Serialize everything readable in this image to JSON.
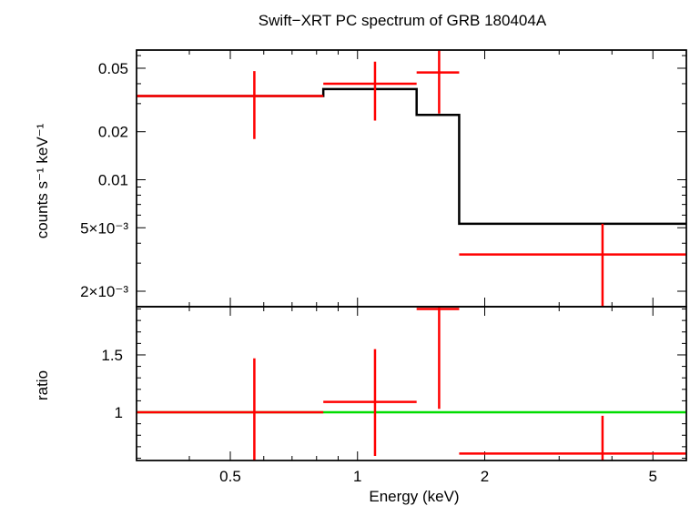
{
  "chart_data": [
    {
      "type": "scatter",
      "title": "Swift−XRT PC spectrum of GRB 180404A",
      "ylabel": "counts s⁻¹ keV⁻¹",
      "xscale": "log",
      "yscale": "log",
      "xlim": [
        0.3,
        6.0
      ],
      "ylim": [
        0.0016,
        0.065
      ],
      "yticks": [
        {
          "value": 0.05,
          "label": "0.05"
        },
        {
          "value": 0.02,
          "label": "0.02"
        },
        {
          "value": 0.01,
          "label": "0.01"
        },
        {
          "value": 0.005,
          "label": "5×10⁻³"
        },
        {
          "value": 0.002,
          "label": "2×10⁻³"
        }
      ],
      "data": {
        "points": [
          {
            "x": 0.57,
            "xlo": 0.3,
            "xhi": 0.83,
            "y": 0.0335,
            "ylo": 0.018,
            "yhi": 0.048
          },
          {
            "x": 1.1,
            "xlo": 0.83,
            "xhi": 1.38,
            "y": 0.04,
            "ylo": 0.0235,
            "yhi": 0.055
          },
          {
            "x": 1.56,
            "xlo": 1.38,
            "xhi": 1.74,
            "y": 0.047,
            "ylo": 0.026,
            "yhi": 0.066
          },
          {
            "x": 3.8,
            "xlo": 1.74,
            "xhi": 6.0,
            "y": 0.0034,
            "ylo": 0.0016,
            "yhi": 0.0053
          }
        ],
        "color": "#ff0000"
      },
      "model": {
        "steps": [
          {
            "xlo": 0.3,
            "xhi": 0.83,
            "y": 0.0335
          },
          {
            "xlo": 0.83,
            "xhi": 1.38,
            "y": 0.037
          },
          {
            "xlo": 1.38,
            "xhi": 1.74,
            "y": 0.0255
          },
          {
            "xlo": 1.74,
            "xhi": 6.0,
            "y": 0.0053
          }
        ],
        "color": "#000000"
      },
      "grid": false
    },
    {
      "type": "scatter",
      "xlabel": "Energy (keV)",
      "ylabel": "ratio",
      "xscale": "log",
      "yscale": "linear",
      "xlim": [
        0.3,
        6.0
      ],
      "ylim": [
        0.58,
        1.92
      ],
      "xticks": [
        {
          "value": 0.5,
          "label": "0.5"
        },
        {
          "value": 1,
          "label": "1"
        },
        {
          "value": 2,
          "label": "2"
        },
        {
          "value": 5,
          "label": "5"
        }
      ],
      "yticks": [
        {
          "value": 1,
          "label": "1"
        },
        {
          "value": 1.5,
          "label": "1.5"
        }
      ],
      "data": {
        "points": [
          {
            "x": 0.57,
            "xlo": 0.3,
            "xhi": 0.83,
            "y": 1.0,
            "ylo": 0.54,
            "yhi": 1.47
          },
          {
            "x": 1.1,
            "xlo": 0.83,
            "xhi": 1.38,
            "y": 1.09,
            "ylo": 0.62,
            "yhi": 1.55
          },
          {
            "x": 1.56,
            "xlo": 1.38,
            "xhi": 1.74,
            "y": 1.9,
            "ylo": 1.03,
            "yhi": 1.95
          },
          {
            "x": 3.8,
            "xlo": 1.74,
            "xhi": 6.0,
            "y": 0.64,
            "ylo": 0.3,
            "yhi": 0.97
          }
        ],
        "color": "#ff0000"
      },
      "reference_line": {
        "y": 1,
        "color": "#00dd00"
      },
      "grid": false
    }
  ]
}
